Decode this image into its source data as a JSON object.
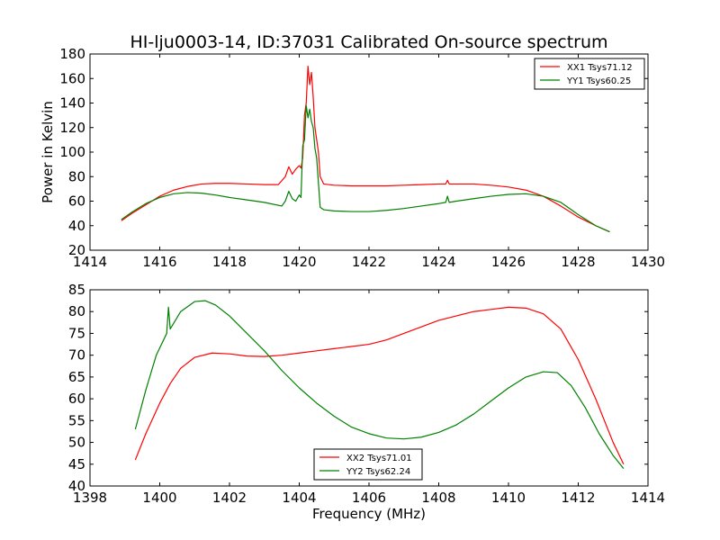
{
  "title": "HI-lju0003-14, ID:37031 Calibrated On-source spectrum",
  "chart_data": [
    {
      "type": "line",
      "name": "top-panel",
      "xlabel": "",
      "ylabel": "Power in Kelvin",
      "xlim": [
        1414,
        1430
      ],
      "ylim": [
        20,
        180
      ],
      "xticks": [
        1414,
        1416,
        1418,
        1420,
        1422,
        1424,
        1426,
        1428,
        1430
      ],
      "yticks": [
        20,
        40,
        60,
        80,
        100,
        120,
        140,
        160,
        180
      ],
      "legend_position": "top-right",
      "grid": false,
      "series": [
        {
          "name": "XX1 Tsys71.12",
          "color": "#ff0000",
          "x": [
            1414.9,
            1415.2,
            1415.6,
            1416.0,
            1416.4,
            1416.8,
            1417.2,
            1417.6,
            1418.0,
            1418.5,
            1419.0,
            1419.4,
            1419.6,
            1419.7,
            1419.8,
            1419.9,
            1420.0,
            1420.05,
            1420.1,
            1420.15,
            1420.2,
            1420.25,
            1420.3,
            1420.35,
            1420.4,
            1420.45,
            1420.5,
            1420.55,
            1420.6,
            1420.7,
            1421.0,
            1421.5,
            1422.0,
            1422.5,
            1423.0,
            1423.5,
            1424.0,
            1424.2,
            1424.25,
            1424.3,
            1424.5,
            1425.0,
            1425.5,
            1426.0,
            1426.5,
            1427.0,
            1427.5,
            1428.0,
            1428.5,
            1428.9
          ],
          "y": [
            44,
            50,
            57,
            64,
            69,
            72,
            74,
            74.5,
            74.5,
            74,
            73.5,
            73.5,
            80,
            88,
            82,
            86,
            89,
            87,
            95,
            130,
            140,
            170,
            155,
            165,
            145,
            120,
            110,
            100,
            80,
            74,
            73,
            72.5,
            72.5,
            72.5,
            73,
            73.5,
            74,
            74,
            77,
            74,
            74,
            74,
            73,
            71.5,
            69,
            64,
            56,
            47,
            40,
            35
          ]
        },
        {
          "name": "YY1 Tsys60.25",
          "color": "#008000",
          "x": [
            1414.9,
            1415.2,
            1415.6,
            1416.0,
            1416.4,
            1416.8,
            1417.2,
            1417.6,
            1418.0,
            1418.5,
            1419.0,
            1419.5,
            1419.6,
            1419.7,
            1419.8,
            1419.9,
            1420.0,
            1420.05,
            1420.1,
            1420.15,
            1420.2,
            1420.25,
            1420.3,
            1420.35,
            1420.4,
            1420.45,
            1420.5,
            1420.55,
            1420.6,
            1420.7,
            1421.0,
            1421.5,
            1422.0,
            1422.5,
            1423.0,
            1423.5,
            1424.0,
            1424.2,
            1424.25,
            1424.3,
            1424.5,
            1425.0,
            1425.5,
            1426.0,
            1426.5,
            1427.0,
            1427.5,
            1428.0,
            1428.5,
            1428.9
          ],
          "y": [
            45,
            51,
            58,
            63,
            66,
            67,
            66.5,
            65,
            63,
            61,
            59,
            56,
            60,
            68,
            62,
            60,
            65,
            63,
            105,
            110,
            138,
            128,
            135,
            125,
            120,
            103,
            95,
            75,
            55,
            53,
            52,
            51.5,
            51.5,
            52.5,
            54,
            56,
            58,
            59,
            64,
            59,
            60,
            62,
            64,
            65.5,
            66,
            64,
            59,
            49,
            40,
            35
          ]
        }
      ]
    },
    {
      "type": "line",
      "name": "bottom-panel",
      "xlabel": "Frequency (MHz)",
      "ylabel": "",
      "xlim": [
        1398,
        1414
      ],
      "ylim": [
        40,
        85
      ],
      "xticks": [
        1398,
        1400,
        1402,
        1404,
        1406,
        1408,
        1410,
        1412,
        1414
      ],
      "yticks": [
        40,
        45,
        50,
        55,
        60,
        65,
        70,
        75,
        80,
        85
      ],
      "legend_position": "lower-center",
      "grid": false,
      "series": [
        {
          "name": "XX2 Tsys71.01",
          "color": "#ff0000",
          "x": [
            1399.3,
            1399.6,
            1400.0,
            1400.3,
            1400.6,
            1401.0,
            1401.5,
            1402.0,
            1402.5,
            1403.0,
            1403.5,
            1404.0,
            1404.5,
            1405.0,
            1405.5,
            1406.0,
            1406.5,
            1407.0,
            1407.5,
            1408.0,
            1408.5,
            1409.0,
            1409.5,
            1410.0,
            1410.5,
            1411.0,
            1411.5,
            1412.0,
            1412.5,
            1413.0,
            1413.3
          ],
          "y": [
            46,
            52,
            59,
            63.5,
            67,
            69.5,
            70.5,
            70.3,
            69.8,
            69.7,
            70,
            70.5,
            71,
            71.5,
            72,
            72.5,
            73.5,
            75,
            76.5,
            78,
            79,
            80,
            80.5,
            81,
            80.8,
            79.5,
            76,
            69,
            60,
            50,
            45
          ]
        },
        {
          "name": "YY2 Tsys62.24",
          "color": "#008000",
          "x": [
            1399.3,
            1399.6,
            1399.9,
            1400.2,
            1400.25,
            1400.3,
            1400.6,
            1401.0,
            1401.3,
            1401.6,
            1402.0,
            1402.5,
            1403.0,
            1403.5,
            1404.0,
            1404.5,
            1405.0,
            1405.5,
            1406.0,
            1406.5,
            1407.0,
            1407.5,
            1408.0,
            1408.5,
            1409.0,
            1409.5,
            1410.0,
            1410.5,
            1411.0,
            1411.4,
            1411.8,
            1412.2,
            1412.6,
            1413.0,
            1413.3
          ],
          "y": [
            53,
            62,
            70,
            75,
            81,
            76,
            80,
            82.3,
            82.5,
            81.5,
            79,
            75,
            71,
            66.5,
            62.5,
            59,
            56,
            53.5,
            52,
            51,
            50.8,
            51.2,
            52.3,
            54,
            56.5,
            59.5,
            62.5,
            65,
            66.2,
            66,
            63,
            58,
            52,
            47,
            44
          ]
        }
      ]
    }
  ]
}
